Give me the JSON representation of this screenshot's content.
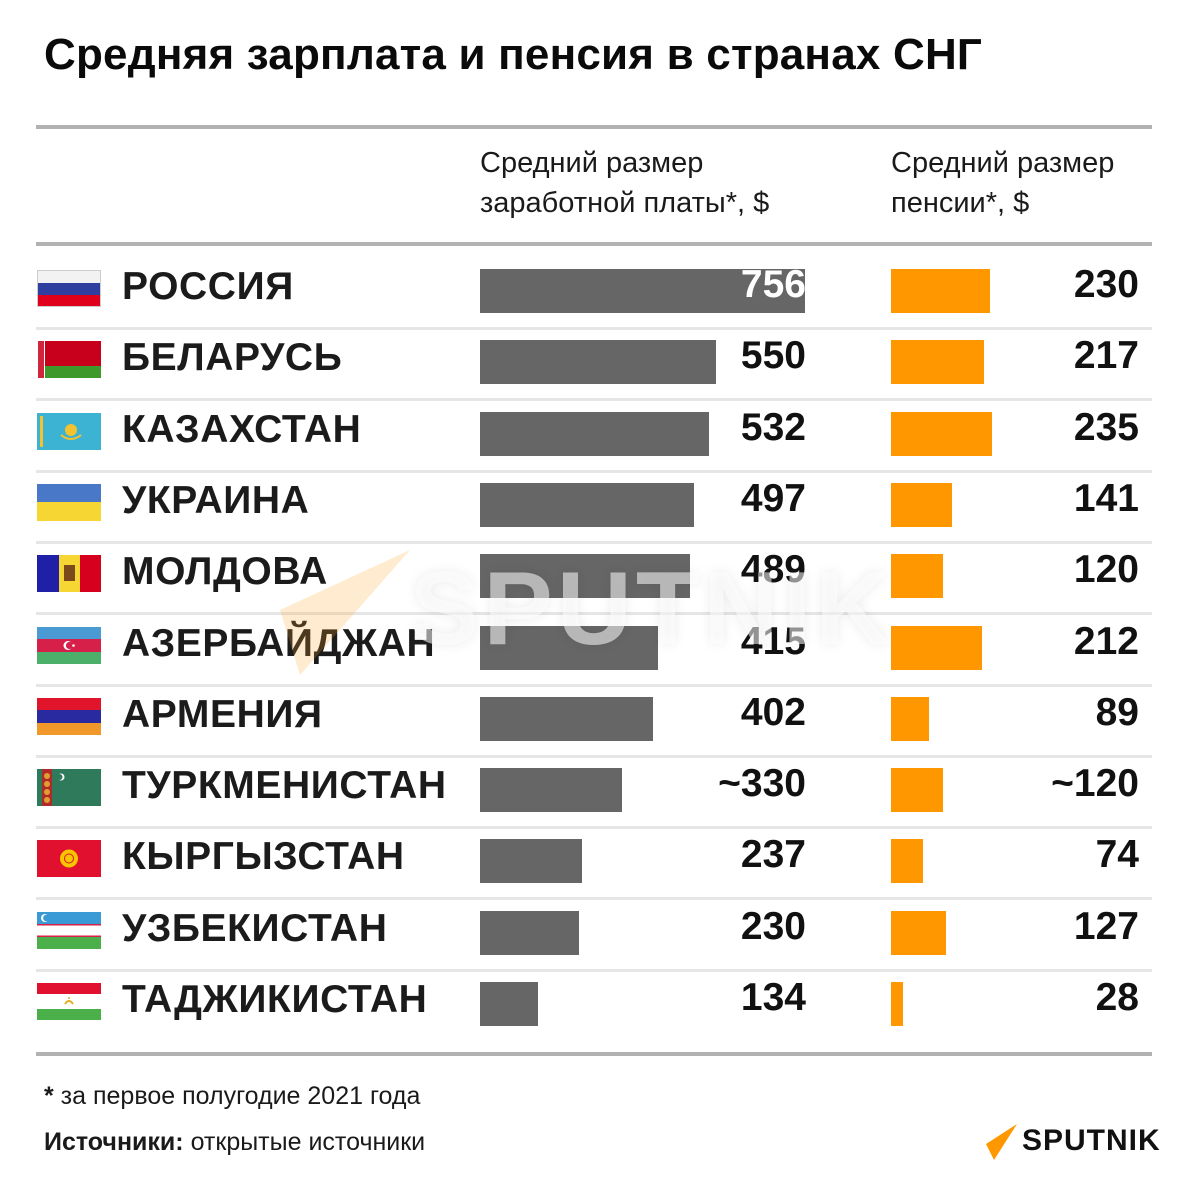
{
  "title": "Средняя зарплата и пенсия в странах СНГ",
  "columns": {
    "wage_header_line1": "Средний размер",
    "wage_header_line2": "заработной платы*, $",
    "pension_header_line1": "Средний размер",
    "pension_header_line2": "пенсии*, $"
  },
  "colors": {
    "wage_bar": "#666666",
    "pension_bar": "#ff9800",
    "separator": "#e6e6e6",
    "rule": "#b2b2b2"
  },
  "rows": [
    {
      "country": "РОССИЯ",
      "flag": "russia-flag",
      "wage": "756",
      "pension": "230"
    },
    {
      "country": "БЕЛАРУСЬ",
      "flag": "belarus-flag",
      "wage": "550",
      "pension": "217"
    },
    {
      "country": "КАЗАХСТАН",
      "flag": "kazakhstan-flag",
      "wage": "532",
      "pension": "235"
    },
    {
      "country": "УКРАИНА",
      "flag": "ukraine-flag",
      "wage": "497",
      "pension": "141"
    },
    {
      "country": "МОЛДОВА",
      "flag": "moldova-flag",
      "wage": "489",
      "pension": "120"
    },
    {
      "country": "АЗЕРБАЙДЖАН",
      "flag": "azerbaijan-flag",
      "wage": "415",
      "pension": "212"
    },
    {
      "country": "АРМЕНИЯ",
      "flag": "armenia-flag",
      "wage": "402",
      "pension": "89"
    },
    {
      "country": "ТУРКМЕНИСТАН",
      "flag": "turkmenistan-flag",
      "wage": "~330",
      "pension": "~120"
    },
    {
      "country": "КЫРГЫЗСТАН",
      "flag": "kyrgyzstan-flag",
      "wage": "237",
      "pension": "74"
    },
    {
      "country": "УЗБЕКИСТАН",
      "flag": "uzbekistan-flag",
      "wage": "230",
      "pension": "127"
    },
    {
      "country": "ТАДЖИКИСТАН",
      "flag": "tajikistan-flag",
      "wage": "134",
      "pension": "28"
    }
  ],
  "watermark": "SPUTNIK",
  "footnote": {
    "mark": "*",
    "text": " за первое полугодие 2021 года"
  },
  "sources": {
    "label": "Источники:",
    "text": " открытые источники"
  },
  "logo": {
    "text": "SPUTNIK"
  },
  "chart_data": {
    "type": "bar",
    "orientation": "horizontal",
    "title": "Средняя зарплата и пенсия в странах СНГ",
    "categories": [
      "РОССИЯ",
      "БЕЛАРУСЬ",
      "КАЗАХСТАН",
      "УКРАИНА",
      "МОЛДОВА",
      "АЗЕРБАЙДЖАН",
      "АРМЕНИЯ",
      "ТУРКМЕНИСТАН",
      "КЫРГЫЗСТАН",
      "УЗБЕКИСТАН",
      "ТАДЖИКИСТАН"
    ],
    "series": [
      {
        "name": "Средний размер заработной платы*, $",
        "color": "#666666",
        "values": [
          756,
          550,
          532,
          497,
          489,
          415,
          402,
          330,
          237,
          230,
          134
        ],
        "labels": [
          "756",
          "550",
          "532",
          "497",
          "489",
          "415",
          "402",
          "~330",
          "237",
          "230",
          "134"
        ]
      },
      {
        "name": "Средний размер пенсии*, $",
        "color": "#ff9800",
        "values": [
          230,
          217,
          235,
          141,
          120,
          212,
          89,
          120,
          74,
          127,
          28
        ],
        "labels": [
          "230",
          "217",
          "235",
          "141",
          "120",
          "212",
          "89",
          "~120",
          "74",
          "127",
          "28"
        ]
      }
    ],
    "xlabel": "",
    "ylabel": "",
    "grid": false,
    "legend": "column headers",
    "annotations": [
      "* за первое полугодие 2021 года",
      "Источники: открытые источники"
    ]
  }
}
